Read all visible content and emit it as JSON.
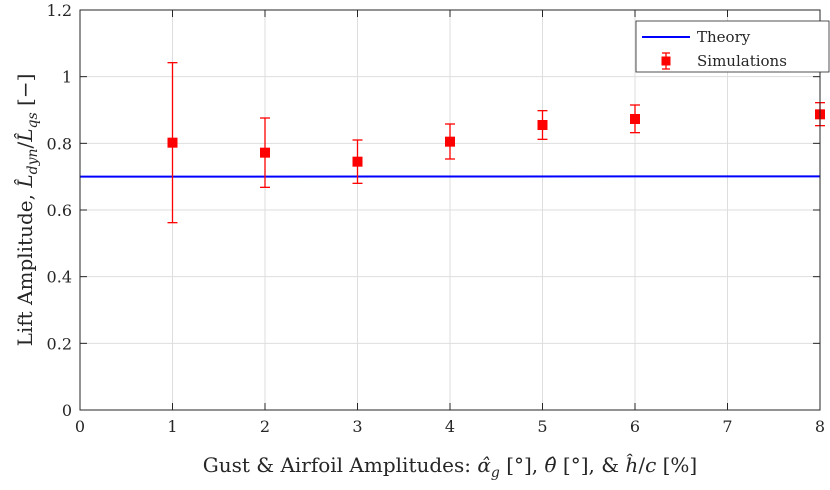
{
  "chart_data": {
    "type": "scatter",
    "title": "",
    "xlabel": "Gust & Airfoil Amplitudes: α̂_g [°], θ̂ [°], & ĥ/c [%]",
    "ylabel": "Lift Amplitude, L̂_dyn/L̂_qs [−]",
    "xlim": [
      0,
      8
    ],
    "ylim": [
      0,
      1.2
    ],
    "x_ticks": [
      0,
      1,
      2,
      3,
      4,
      5,
      6,
      7,
      8
    ],
    "y_ticks": [
      0,
      0.2,
      0.4,
      0.6,
      0.8,
      1,
      1.2
    ],
    "x_tick_labels": [
      "0",
      "1",
      "2",
      "3",
      "4",
      "5",
      "6",
      "7",
      "8"
    ],
    "y_tick_labels": [
      "0",
      "0.2",
      "0.4",
      "0.6",
      "0.8",
      "1",
      "1.2"
    ],
    "grid": true,
    "legend_position": "top-right",
    "series": [
      {
        "name": "Theory",
        "kind": "line",
        "color": "#0000ff",
        "x": [
          0,
          8
        ],
        "y": [
          0.7,
          0.701
        ]
      },
      {
        "name": "Simulations",
        "kind": "errorbar",
        "color": "#ff0000",
        "marker": "square",
        "x": [
          1,
          2,
          3,
          4,
          5,
          6,
          8
        ],
        "y": [
          0.802,
          0.772,
          0.745,
          0.805,
          0.855,
          0.873,
          0.887
        ],
        "y_low": [
          0.562,
          0.668,
          0.68,
          0.753,
          0.812,
          0.832,
          0.853
        ],
        "y_high": [
          1.042,
          0.876,
          0.81,
          0.858,
          0.898,
          0.915,
          0.922
        ]
      }
    ]
  }
}
